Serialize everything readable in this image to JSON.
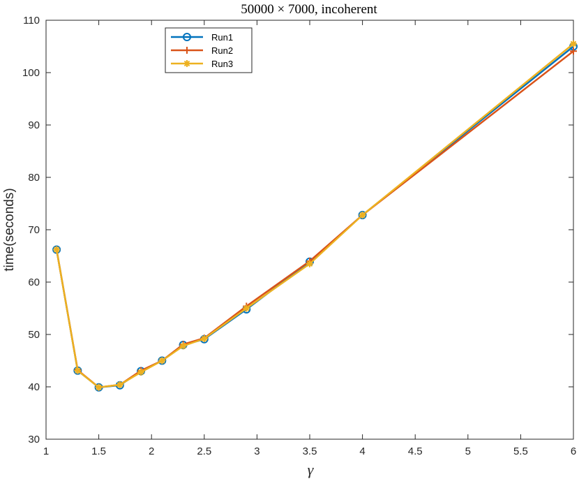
{
  "chart_data": {
    "type": "line",
    "title": "50000 × 7000, incoherent",
    "xlabel": "γ",
    "ylabel": "time(seconds)",
    "xlim": [
      1,
      6
    ],
    "ylim": [
      30,
      110
    ],
    "xticks": [
      "1",
      "1.5",
      "2",
      "2.5",
      "3",
      "3.5",
      "4",
      "4.5",
      "5",
      "5.5",
      "6"
    ],
    "yticks": [
      "30",
      "40",
      "50",
      "60",
      "70",
      "80",
      "90",
      "100",
      "110"
    ],
    "legend_position": "top-left",
    "grid": false,
    "x": [
      1.1,
      1.3,
      1.5,
      1.7,
      1.9,
      2.1,
      2.3,
      2.5,
      2.9,
      3.5,
      4.0,
      6.0
    ],
    "series": [
      {
        "name": "Run1",
        "color": "#0072BD",
        "marker": "circle",
        "values": [
          66.2,
          43.1,
          39.9,
          40.3,
          43.0,
          45.0,
          48.0,
          49.1,
          54.8,
          63.9,
          72.8,
          105.0
        ]
      },
      {
        "name": "Run2",
        "color": "#D95319",
        "marker": "plus",
        "values": [
          66.2,
          43.2,
          39.9,
          40.4,
          43.1,
          45.0,
          48.1,
          49.3,
          55.4,
          64.0,
          72.8,
          104.1
        ]
      },
      {
        "name": "Run3",
        "color": "#EDB120",
        "marker": "asterisk",
        "values": [
          66.2,
          43.1,
          39.9,
          40.4,
          42.8,
          45.0,
          47.8,
          49.2,
          55.0,
          63.5,
          72.8,
          105.5
        ]
      }
    ]
  }
}
